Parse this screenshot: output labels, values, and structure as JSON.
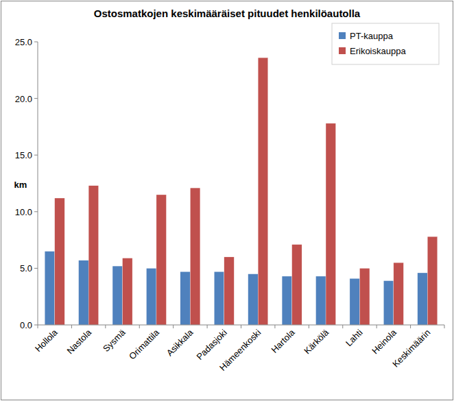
{
  "chart_data": {
    "type": "bar",
    "title": "Ostosmatkojen keskimääräiset pituudet henkilöautolla",
    "y_label": "km",
    "categories": [
      "Hollola",
      "Nastola",
      "Sysmä",
      "Orimattila",
      "Asikkala",
      "Padasjoki",
      "Hämeenkoski",
      "Hartola",
      "Kärkölä",
      "Lahti",
      "Heinola",
      "Keskimäärin"
    ],
    "series": [
      {
        "name": "PT-kauppa",
        "color": "#4f81bd",
        "values": [
          6.5,
          5.7,
          5.2,
          5.0,
          4.7,
          4.7,
          4.5,
          4.3,
          4.3,
          4.1,
          3.9,
          4.6
        ]
      },
      {
        "name": "Erikoiskauppa",
        "color": "#c0504d",
        "values": [
          11.2,
          12.3,
          5.9,
          11.5,
          12.1,
          6.0,
          23.6,
          7.1,
          17.8,
          5.0,
          5.5,
          7.8
        ]
      }
    ],
    "ylim": [
      0,
      25
    ],
    "yticks": [
      {
        "value": 0,
        "label": "0.0"
      },
      {
        "value": 5,
        "label": "5.0"
      },
      {
        "value": 10,
        "label": "10.0"
      },
      {
        "value": 15,
        "label": "15.0"
      },
      {
        "value": 20,
        "label": "20.0"
      },
      {
        "value": 25,
        "label": "25.0"
      }
    ],
    "grid": false,
    "legend": "top-right"
  }
}
